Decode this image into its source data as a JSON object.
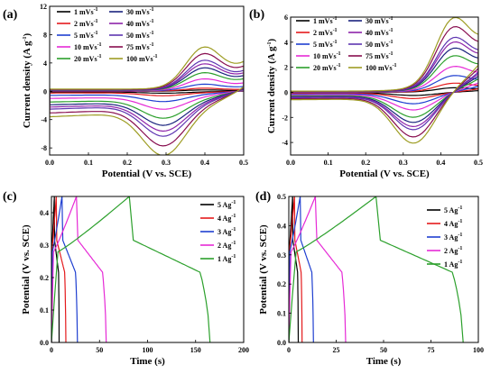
{
  "chart_data": [
    {
      "id": "a",
      "panel_label": "(a)",
      "type": "line",
      "xlabel": "Potential (V vs. SCE)",
      "ylabel": "Current density (A g",
      "ylabel_sup": "-1",
      "ylabel_end": ")",
      "xlim": [
        0.0,
        0.5
      ],
      "ylim": [
        -9,
        12
      ],
      "xticks": [
        "0.0",
        "0.1",
        "0.2",
        "0.3",
        "0.4",
        "0.5"
      ],
      "xtick_values": [
        0.0,
        0.1,
        0.2,
        0.3,
        0.4,
        0.5
      ],
      "yticks": [
        "-8",
        "-4",
        "0",
        "4",
        "8",
        "12"
      ],
      "ytick_values": [
        -8,
        -4,
        0,
        4,
        8,
        12
      ],
      "legend_columns": 2,
      "cv": {
        "pos_scale": 0.55,
        "neg_scale": 0.7,
        "ox_peak_x": 0.395,
        "red_peak_x": 0.295,
        "base_upper": 0.15,
        "base_lower": -1.2,
        "end_lower": -1.8
      },
      "series": [
        {
          "name": "1 mVs",
          "sup": "-1",
          "color": "#000000",
          "peak": 0.3
        },
        {
          "name": "2 mVs",
          "sup": "-1",
          "color": "#e41a1c",
          "peak": 0.7
        },
        {
          "name": "5 mVs",
          "sup": "-1",
          "color": "#1f3fd0",
          "peak": 1.6
        },
        {
          "name": "10 mVs",
          "sup": "-1",
          "color": "#e62ad6",
          "peak": 2.8
        },
        {
          "name": "20 mVs",
          "sup": "-1",
          "color": "#2ca02c",
          "peak": 4.2
        },
        {
          "name": "30 mVs",
          "sup": "-1",
          "color": "#1a237e",
          "peak": 5.3
        },
        {
          "name": "40 mVs",
          "sup": "-1",
          "color": "#8e24aa",
          "peak": 6.2
        },
        {
          "name": "50 mVs",
          "sup": "-1",
          "color": "#5e35b1",
          "peak": 7.0
        },
        {
          "name": "75 mVs",
          "sup": "-1",
          "color": "#880e4f",
          "peak": 8.5
        },
        {
          "name": "100 mVs",
          "sup": "-1",
          "color": "#9e9d24",
          "peak": 10.0
        }
      ]
    },
    {
      "id": "b",
      "panel_label": "(b)",
      "type": "line",
      "xlabel": "Potential (V vs. SCE)",
      "ylabel": "Current density (A g",
      "ylabel_sup": "-1",
      "ylabel_end": ")",
      "xlim": [
        0.0,
        0.5
      ],
      "ylim": [
        -5,
        6
      ],
      "xticks": [
        "0.0",
        "0.1",
        "0.2",
        "0.3",
        "0.4",
        "0.5"
      ],
      "xtick_values": [
        0.0,
        0.1,
        0.2,
        0.3,
        0.4,
        0.5
      ],
      "yticks": [
        "-4",
        "-2",
        "0",
        "2",
        "4",
        "6"
      ],
      "ytick_values": [
        -4,
        -2,
        0,
        2,
        4,
        6
      ],
      "legend_columns": 2,
      "cv": {
        "pos_scale": 1.0,
        "neg_scale": 0.85,
        "ox_peak_x": 0.43,
        "red_peak_x": 0.33,
        "base_upper": 0.1,
        "base_lower": -0.5,
        "end_lower": -0.6
      },
      "series": [
        {
          "name": "1 mVs",
          "sup": "-1",
          "color": "#000000",
          "peak": 0.3
        },
        {
          "name": "2 mVs",
          "sup": "-1",
          "color": "#e41a1c",
          "peak": 0.6
        },
        {
          "name": "5 mVs",
          "sup": "-1",
          "color": "#1f3fd0",
          "peak": 1.1
        },
        {
          "name": "10 mVs",
          "sup": "-1",
          "color": "#e62ad6",
          "peak": 1.7
        },
        {
          "name": "20 mVs",
          "sup": "-1",
          "color": "#2ca02c",
          "peak": 2.4
        },
        {
          "name": "30 mVs",
          "sup": "-1",
          "color": "#1a237e",
          "peak": 2.9
        },
        {
          "name": "40 mVs",
          "sup": "-1",
          "color": "#8e24aa",
          "peak": 3.3
        },
        {
          "name": "50 mVs",
          "sup": "-1",
          "color": "#5e35b1",
          "peak": 3.6
        },
        {
          "name": "75 mVs",
          "sup": "-1",
          "color": "#880e4f",
          "peak": 4.3
        },
        {
          "name": "100 mVs",
          "sup": "-1",
          "color": "#9e9d24",
          "peak": 4.9
        }
      ]
    },
    {
      "id": "c",
      "panel_label": "(c)",
      "type": "line",
      "xlabel": "Time (s)",
      "ylabel": "Potential (V vs. SCE)",
      "xlim": [
        0,
        200
      ],
      "ylim": [
        0.0,
        0.45
      ],
      "xticks": [
        "0",
        "50",
        "100",
        "150",
        "200"
      ],
      "xtick_values": [
        0,
        50,
        100,
        150,
        200
      ],
      "yticks": [
        "0.0",
        "0.1",
        "0.2",
        "0.3",
        "0.4"
      ],
      "ytick_values": [
        0.0,
        0.1,
        0.2,
        0.3,
        0.4
      ],
      "legend_columns": 1,
      "series": [
        {
          "name": "5 Ag",
          "sup": "-1",
          "color": "#000000",
          "t_charge": 3,
          "t_end": 8
        },
        {
          "name": "4 Ag",
          "sup": "-1",
          "color": "#e41a1c",
          "t_charge": 5,
          "t_end": 15
        },
        {
          "name": "3 Ag",
          "sup": "-1",
          "color": "#1f3fd0",
          "t_charge": 11,
          "t_end": 27
        },
        {
          "name": "2 Ag",
          "sup": "-1",
          "color": "#e62ad6",
          "t_charge": 26,
          "t_end": 57
        },
        {
          "name": "1 Ag",
          "sup": "-1",
          "color": "#2ca02c",
          "t_charge": 81,
          "t_end": 165
        }
      ],
      "vmax": 0.45
    },
    {
      "id": "d",
      "panel_label": "(d)",
      "type": "line",
      "xlabel": "Time (s)",
      "ylabel": "Potential (V vs. SCE)",
      "xlim": [
        0,
        100
      ],
      "ylim": [
        0.0,
        0.5
      ],
      "xticks": [
        "0",
        "25",
        "50",
        "75",
        "100"
      ],
      "xtick_values": [
        0,
        25,
        50,
        75,
        100
      ],
      "yticks": [
        "0.0",
        "0.1",
        "0.2",
        "0.3",
        "0.4",
        "0.5"
      ],
      "ytick_values": [
        0.0,
        0.1,
        0.2,
        0.3,
        0.4,
        0.5
      ],
      "legend_columns": 1,
      "series": [
        {
          "name": "5 Ag",
          "sup": "-1",
          "color": "#000000",
          "t_charge": 2,
          "t_end": 5
        },
        {
          "name": "4 Ag",
          "sup": "-1",
          "color": "#e41a1c",
          "t_charge": 3,
          "t_end": 7
        },
        {
          "name": "3 Ag",
          "sup": "-1",
          "color": "#1f3fd0",
          "t_charge": 6,
          "t_end": 13
        },
        {
          "name": "2 Ag",
          "sup": "-1",
          "color": "#e62ad6",
          "t_charge": 14,
          "t_end": 30
        },
        {
          "name": "1 Ag",
          "sup": "-1",
          "color": "#2ca02c",
          "t_charge": 46,
          "t_end": 92
        }
      ],
      "vmax": 0.5
    }
  ]
}
